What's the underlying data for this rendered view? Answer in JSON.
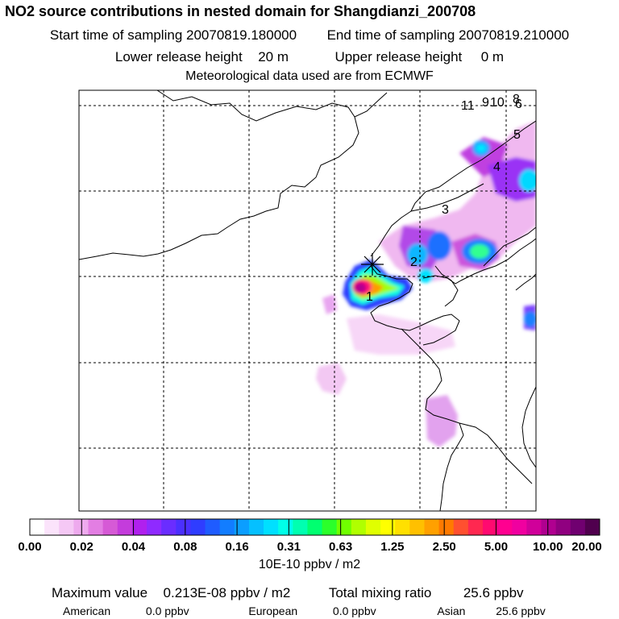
{
  "header": {
    "title": "NO2 source contributions in nested domain for Shangdianzi_200708",
    "start_label": "Start time of sampling 20070819.180000",
    "end_label": "End time of sampling 20070819.210000",
    "lower_label": "Lower release height",
    "lower_value": "20 m",
    "upper_label": "Upper release height",
    "upper_value": "0 m",
    "met_label": "Meteorological data used are from ECMWF"
  },
  "map": {
    "source_numbers": [
      "1",
      "2",
      "3",
      "4",
      "5",
      "6",
      "8",
      "9",
      "10",
      "11"
    ],
    "receptor_marker": "star-marker-icon"
  },
  "colorbar": {
    "tick_labels": [
      "0.00",
      "0.02",
      "0.04",
      "0.08",
      "0.16",
      "0.31",
      "0.63",
      "1.25",
      "2.50",
      "5.00",
      "10.00",
      "20.00"
    ],
    "colors": [
      "#ffffff",
      "#fbe3fb",
      "#f5c8f5",
      "#eeaaee",
      "#e37ee3",
      "#d65ad6",
      "#c43cdc",
      "#b020ee",
      "#8f2aff",
      "#6a2dff",
      "#4b30ff",
      "#2f3dff",
      "#1f5cff",
      "#127dff",
      "#0b9eff",
      "#05c0ff",
      "#00e0ff",
      "#00ffe8",
      "#00ffb0",
      "#00ff70",
      "#2bff2b",
      "#70ff00",
      "#b0ff00",
      "#e0ff00",
      "#ffff00",
      "#ffe000",
      "#ffc000",
      "#ffa000",
      "#ff7a00",
      "#ff5030",
      "#ff2850",
      "#ff0a70",
      "#ff0090",
      "#f000a0",
      "#d0009a",
      "#b00090",
      "#900080",
      "#700070",
      "#50004e"
    ],
    "units": "10E-10 ppbv / m2"
  },
  "stats": {
    "max_label": "Maximum value",
    "max_value": "0.213E-08 ppbv / m2",
    "total_label": "Total mixing ratio",
    "total_value": "25.6 ppbv",
    "american_label": "American",
    "american_value": "0.0 ppbv",
    "european_label": "European",
    "european_value": "0.0 ppbv",
    "asian_label": "Asian",
    "asian_value": "25.6 ppbv"
  }
}
